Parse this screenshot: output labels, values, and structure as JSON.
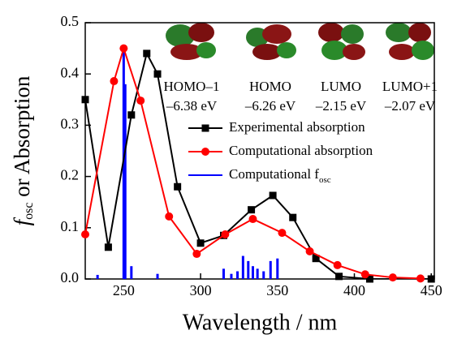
{
  "chart_data": {
    "type": "line",
    "xlabel": "Wavelength / nm",
    "ylabel": {
      "main": "f",
      "sub": "osc",
      "rest": " or Absorption"
    },
    "xlim": [
      225,
      452
    ],
    "ylim": [
      0,
      0.5
    ],
    "xticks": [
      250,
      300,
      350,
      400,
      450
    ],
    "yticks": [
      {
        "value": 0,
        "label": "0.0"
      },
      0.1,
      0.2,
      0.3,
      0.4,
      0.5
    ],
    "series": [
      {
        "name": "Experimental absorption",
        "color": "#000000",
        "type": "line",
        "marker": "square",
        "x": [
          225,
          240,
          255,
          265,
          272,
          285,
          300,
          315,
          333,
          347,
          360,
          375,
          390,
          410,
          450
        ],
        "values": [
          0.35,
          0.062,
          0.32,
          0.44,
          0.4,
          0.18,
          0.07,
          0.085,
          0.135,
          0.163,
          0.12,
          0.04,
          0.005,
          0,
          0
        ]
      },
      {
        "name": "Computational absorption",
        "color": "#ff0000",
        "type": "line",
        "marker": "circle",
        "x": [
          225,
          243.7,
          250,
          261,
          279.5,
          297.5,
          316,
          334,
          353,
          371,
          389,
          407,
          425,
          443
        ],
        "values": [
          0.087,
          0.386,
          0.45,
          0.348,
          0.122,
          0.049,
          0.087,
          0.117,
          0.09,
          0.054,
          0.027,
          0.009,
          0.003,
          0.001
        ]
      },
      {
        "name": "Computational f",
        "name_sub": "osc",
        "color": "#0000ff",
        "type": "bar",
        "x": [
          233,
          250,
          251,
          255,
          272,
          315,
          320,
          324,
          327.6,
          331,
          334,
          337,
          341,
          345.5,
          350
        ],
        "values": [
          0.008,
          0.45,
          0.38,
          0.025,
          0.01,
          0.02,
          0.01,
          0.015,
          0.045,
          0.035,
          0.025,
          0.02,
          0.015,
          0.035,
          0.04
        ]
      }
    ],
    "annotations": [
      "HOMO–1",
      "HOMO",
      "LUMO",
      "LUMO+1",
      "–6.38 eV",
      "–6.26 eV",
      "–2.15 eV",
      "–2.07 eV"
    ]
  }
}
